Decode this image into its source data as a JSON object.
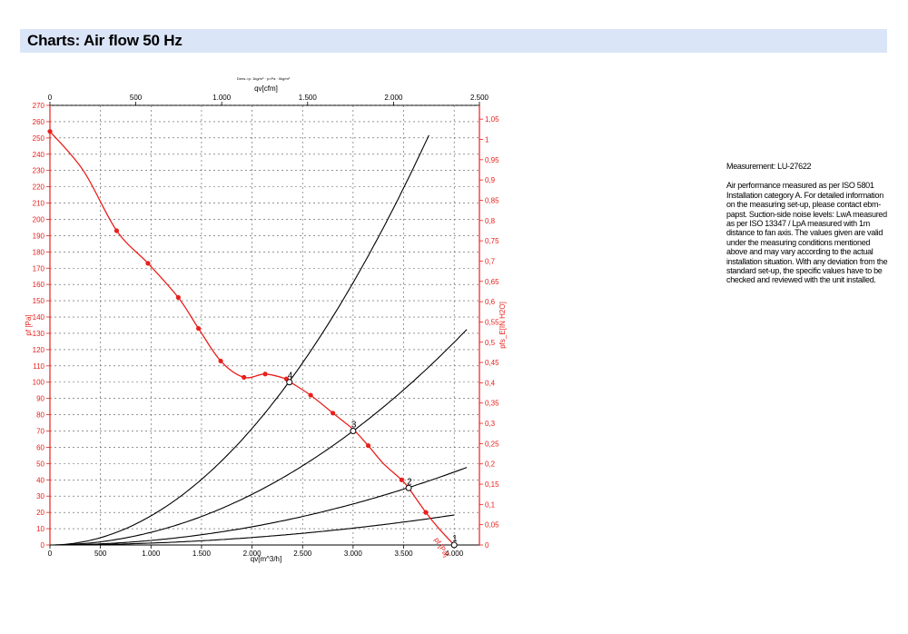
{
  "header": {
    "title": "Charts: Air flow 50 Hz"
  },
  "measurement": {
    "label": "Measurement: LU-27622",
    "description": "Air performance measured as per ISO 5801 Installation category A. For detailed information on the measuring set-up, please contact ebm-papst. Suction-side noise levels: LwA measured as per ISO 13347 / LpA measured with 1m distance to fan axis. The values given are valid under the measuring conditions mentioned above and may vary according to the actual installation situation. With any deviation from the standard set-up, the specific values have to be checked and reviewed with the unit installed."
  },
  "chart_data": {
    "type": "line",
    "small_caption": "Dens.=p: 1kg/m³ · p=Pa  ·  0kg/m³",
    "top_axis": {
      "label": "qv[cfm]",
      "range": [
        0,
        2500
      ],
      "ticks": [
        "0",
        "500",
        "1.000",
        "1.500",
        "2.000",
        "2.500"
      ],
      "values": [
        0,
        500,
        1000,
        1500,
        2000,
        2500
      ]
    },
    "bottom_axis": {
      "label": "qv[m^3/h]",
      "range": [
        0,
        4250
      ],
      "ticks": [
        "0",
        "500",
        "1.000",
        "1.500",
        "2.000",
        "2.500",
        "3.000",
        "3.500",
        "4.000"
      ],
      "values": [
        0,
        500,
        1000,
        1500,
        2000,
        2500,
        3000,
        3500,
        4000
      ]
    },
    "left_axis": {
      "label": "pf [Pa]",
      "range": [
        0,
        270
      ],
      "ticks": [
        "0",
        "10",
        "20",
        "30",
        "40",
        "50",
        "60",
        "70",
        "80",
        "90",
        "100",
        "110",
        "120",
        "130",
        "140",
        "150",
        "160",
        "170",
        "180",
        "190",
        "200",
        "210",
        "220",
        "230",
        "240",
        "250",
        "260",
        "270"
      ],
      "values": [
        0,
        10,
        20,
        30,
        40,
        50,
        60,
        70,
        80,
        90,
        100,
        110,
        120,
        130,
        140,
        150,
        160,
        170,
        180,
        190,
        200,
        210,
        220,
        230,
        240,
        250,
        260,
        270
      ]
    },
    "right_axis": {
      "label": "pfs_E[IN H2O]",
      "range": [
        0,
        1.084
      ],
      "ticks": [
        "0",
        "0,05",
        "0,1",
        "0,15",
        "0,2",
        "0,25",
        "0,3",
        "0,35",
        "0,4",
        "0,45",
        "0,5",
        "0,55",
        "0,6",
        "0,65",
        "0,7",
        "0,75",
        "0,8",
        "0,85",
        "0,9",
        "0,95",
        "1",
        "1,05"
      ],
      "values": [
        0,
        0.05,
        0.1,
        0.15,
        0.2,
        0.25,
        0.3,
        0.35,
        0.4,
        0.45,
        0.5,
        0.55,
        0.6,
        0.65,
        0.7,
        0.75,
        0.8,
        0.85,
        0.9,
        0.95,
        1,
        1.05
      ]
    },
    "grid": true,
    "series": [
      {
        "name": "pf [Pa]",
        "color": "#e8201c",
        "x": [
          0,
          330,
          660,
          970,
          1270,
          1470,
          1690,
          1920,
          2130,
          2340,
          2380,
          2580,
          2800,
          3000,
          3150,
          3300,
          3480,
          3550,
          3720,
          3850,
          4000
        ],
        "y": [
          254,
          230,
          193,
          173,
          152,
          133,
          113,
          103,
          105,
          102,
          100,
          92,
          81,
          71,
          61,
          50,
          40,
          35,
          20,
          10,
          0
        ],
        "markers": [
          0,
          660,
          970,
          1270,
          1470,
          1690,
          1920,
          2130,
          2340,
          2580,
          2800,
          3150,
          3480,
          3720
        ]
      },
      {
        "name": "1",
        "color": "#000000",
        "a": 1.15e-06,
        "x_end": 4000
      },
      {
        "name": "2",
        "color": "#000000",
        "a": 2.8e-06,
        "x_end": 4140
      },
      {
        "name": "3",
        "color": "#000000",
        "a": 7.78e-06,
        "x_end": 4140
      },
      {
        "name": "4",
        "color": "#000000",
        "a": 1.79e-05,
        "x_end": 3760
      }
    ],
    "operating_points": [
      {
        "label": "1",
        "x": 4000,
        "y": 0
      },
      {
        "label": "2",
        "x": 3550,
        "y": 35
      },
      {
        "label": "3",
        "x": 3000,
        "y": 70
      },
      {
        "label": "4",
        "x": 2370,
        "y": 100
      }
    ],
    "curve_label": "pf [Pa]"
  }
}
